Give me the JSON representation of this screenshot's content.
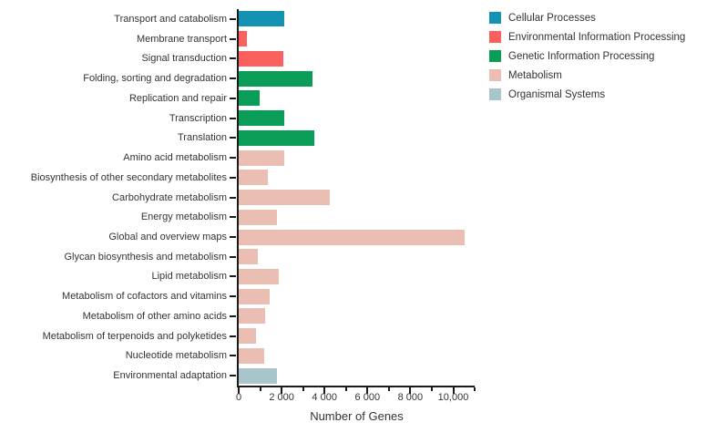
{
  "chart_data": {
    "type": "bar",
    "orientation": "horizontal",
    "xlabel": "Number of Genes",
    "ylabel": "",
    "xlim": [
      0,
      11000
    ],
    "grid": false,
    "x_major_ticks": [
      {
        "value": 0,
        "label": "0"
      },
      {
        "value": 2000,
        "label": "2 000"
      },
      {
        "value": 4000,
        "label": "4 000"
      },
      {
        "value": 6000,
        "label": "6 000"
      },
      {
        "value": 8000,
        "label": "8 000"
      },
      {
        "value": 10000,
        "label": "10,000"
      }
    ],
    "minor_tick_interval": 1000,
    "legend_position": "top-right",
    "group_colors": {
      "Cellular Processes": "#1492b4",
      "Environmental Information Processing": "#fa605d",
      "Genetic Information Processing": "#0a9d58",
      "Metabolism": "#eabeb2",
      "Organismal Systems": "#a9c5cc"
    },
    "legend_entries": [
      "Cellular Processes",
      "Environmental Information Processing",
      "Genetic Information Processing",
      "Metabolism",
      "Organismal Systems"
    ],
    "bars": [
      {
        "category": "Transport and catabolism",
        "group": "Cellular Processes",
        "value": 2130
      },
      {
        "category": "Membrane transport",
        "group": "Environmental Information Processing",
        "value": 370
      },
      {
        "category": "Signal transduction",
        "group": "Environmental Information Processing",
        "value": 2100
      },
      {
        "category": "Folding, sorting and degradation",
        "group": "Genetic Information Processing",
        "value": 3420
      },
      {
        "category": "Replication and repair",
        "group": "Genetic Information Processing",
        "value": 960
      },
      {
        "category": "Transcription",
        "group": "Genetic Information Processing",
        "value": 2110
      },
      {
        "category": "Translation",
        "group": "Genetic Information Processing",
        "value": 3540
      },
      {
        "category": "Amino acid metabolism",
        "group": "Metabolism",
        "value": 2120
      },
      {
        "category": "Biosynthesis of other secondary metabolites",
        "group": "Metabolism",
        "value": 1370
      },
      {
        "category": "Carbohydrate metabolism",
        "group": "Metabolism",
        "value": 4230
      },
      {
        "category": "Energy metabolism",
        "group": "Metabolism",
        "value": 1780
      },
      {
        "category": "Global and overview maps",
        "group": "Metabolism",
        "value": 10520
      },
      {
        "category": "Glycan biosynthesis and metabolism",
        "group": "Metabolism",
        "value": 870
      },
      {
        "category": "Lipid metabolism",
        "group": "Metabolism",
        "value": 1850
      },
      {
        "category": "Metabolism of cofactors and vitamins",
        "group": "Metabolism",
        "value": 1430
      },
      {
        "category": "Metabolism of other amino acids",
        "group": "Metabolism",
        "value": 1250
      },
      {
        "category": "Metabolism of terpenoids and polyketides",
        "group": "Metabolism",
        "value": 800
      },
      {
        "category": "Nucleotide metabolism",
        "group": "Metabolism",
        "value": 1170
      },
      {
        "category": "Environmental adaptation",
        "group": "Organismal Systems",
        "value": 1780
      }
    ],
    "axis_color": "#1a1a1a",
    "text_color": "#333333"
  }
}
